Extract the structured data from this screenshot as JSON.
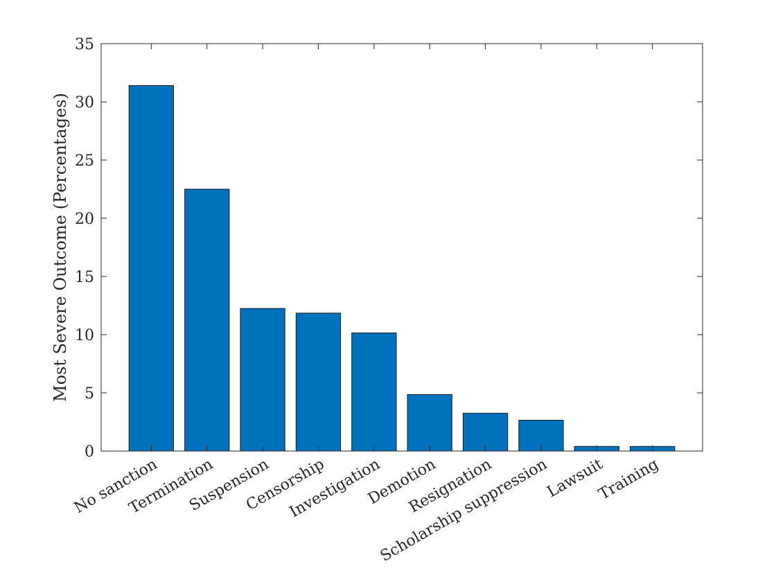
{
  "chart_data": {
    "type": "bar",
    "categories": [
      "No sanction",
      "Termination",
      "Suspension",
      "Censorship",
      "Investigation",
      "Demotion",
      "Resignation",
      "Scholarship suppression",
      "Lawsuit",
      "Training"
    ],
    "values": [
      31.4,
      22.5,
      12.25,
      11.85,
      10.15,
      4.85,
      3.25,
      2.65,
      0.4,
      0.4
    ],
    "title": "",
    "xlabel": "",
    "ylabel": "Most Severe Outcome (Percentages)",
    "ylim": [
      0,
      35
    ],
    "yticks": [
      0,
      5,
      10,
      15,
      20,
      25,
      30,
      35
    ],
    "bar_color": "#0072BD",
    "grid": false,
    "box": true
  }
}
